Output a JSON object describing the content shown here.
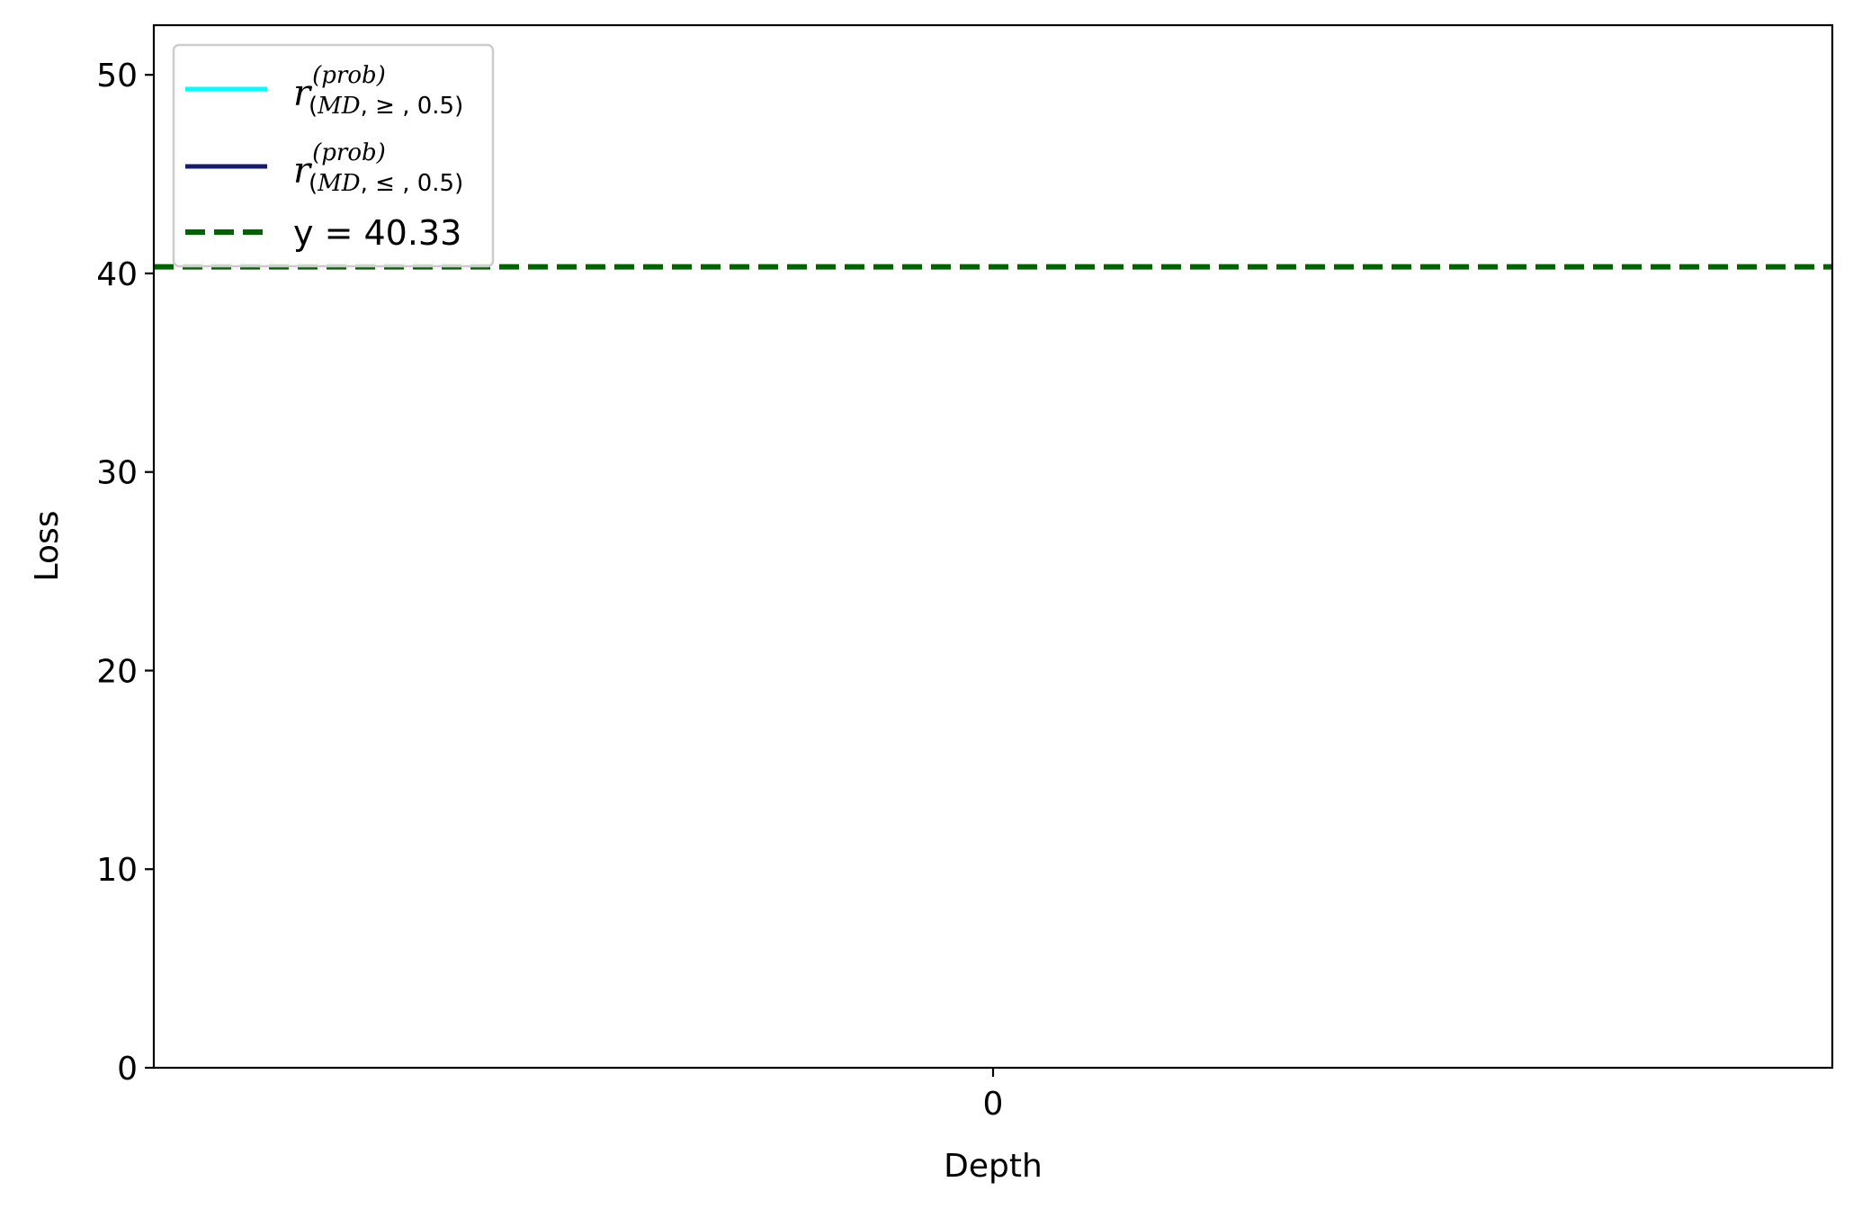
{
  "chart_data": {
    "type": "line",
    "xlabel": "Depth",
    "ylabel": "Loss",
    "x_ticks": [
      "0"
    ],
    "xlim": [
      -1,
      1
    ],
    "ylim": [
      0,
      52.5
    ],
    "y_ticks": [
      0,
      10,
      20,
      30,
      40,
      50
    ],
    "y_tick_labels": [
      "0",
      "10",
      "20",
      "30",
      "40",
      "50"
    ],
    "grid": false,
    "legend_position": "top-left",
    "series": [
      {
        "name": "r^(prob)_(MD, ≥ , 0.5)",
        "name_parts": {
          "main": "r",
          "sup": "(prob)",
          "sub_open": "(",
          "sub_it": "MD",
          "sub_rest": ", ≥ , 0.5)"
        },
        "color": "#00ffff",
        "style": "solid",
        "x": [],
        "y": []
      },
      {
        "name": "r^(prob)_(MD, ≤ , 0.5)",
        "name_parts": {
          "main": "r",
          "sup": "(prob)",
          "sub_open": "(",
          "sub_it": "MD",
          "sub_rest": ", ≤ , 0.5)"
        },
        "color": "#191970",
        "style": "solid",
        "x": [],
        "y": []
      }
    ],
    "reference_lines": [
      {
        "name": "y = 40.33",
        "orientation": "horizontal",
        "y": 40.33,
        "color": "#006400",
        "style": "dashed"
      }
    ]
  }
}
